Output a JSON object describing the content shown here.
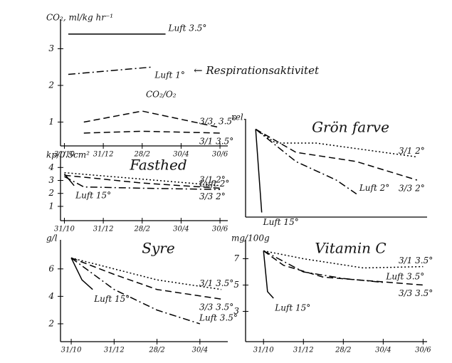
{
  "chart_data": [
    {
      "type": "line",
      "ylabel": "CO₂, ml/kg hr⁻¹",
      "annotations": [
        "← Respirationsaktivitet",
        "CO₂/O₂"
      ],
      "xlim": [
        -0.2,
        8.4
      ],
      "ylim": [
        0.35,
        3.65
      ],
      "yticks": [
        1,
        2,
        3
      ],
      "xticks": [
        {
          "value": 0,
          "label": "31/10"
        },
        {
          "value": 2,
          "label": "31/12"
        },
        {
          "value": 4,
          "label": "28/2"
        },
        {
          "value": 6,
          "label": "30/4"
        },
        {
          "value": 8,
          "label": "30/6"
        }
      ],
      "series": [
        {
          "name": "Luft 3.5°",
          "color": "#000000",
          "dash": "solid",
          "x": [
            0.2,
            5.2
          ],
          "values": [
            3.4,
            3.4
          ]
        },
        {
          "name": "Luft 1°",
          "color": "#000000",
          "dash": "dashdot",
          "x": [
            0.2,
            4.5
          ],
          "values": [
            2.3,
            2.5
          ]
        },
        {
          "name": "3/3, 3.5°",
          "color": "#000000",
          "dash": "dashed",
          "x": [
            1,
            4,
            8
          ],
          "values": [
            1.0,
            1.3,
            0.85
          ]
        },
        {
          "name": "3/1 3.5°",
          "color": "#000000",
          "dash": "dashed",
          "x": [
            1,
            4,
            8
          ],
          "values": [
            0.7,
            0.75,
            0.7
          ]
        }
      ]
    },
    {
      "type": "line",
      "title": "Fasthed",
      "ylabel": "kp/0.5cm²",
      "xlim": [
        -0.2,
        8.4
      ],
      "ylim": [
        -0.1,
        4.4
      ],
      "yticks": [
        1,
        2,
        3,
        4
      ],
      "xticks": [
        {
          "value": 0,
          "label": "31/10"
        },
        {
          "value": 2,
          "label": "31/12"
        },
        {
          "value": 4,
          "label": "28/2"
        },
        {
          "value": 6,
          "label": "30/4"
        },
        {
          "value": 8,
          "label": "30/6"
        }
      ],
      "series": [
        {
          "name": "3/1 2°",
          "color": "#000000",
          "dash": "dotted",
          "x": [
            0,
            8
          ],
          "values": [
            3.6,
            2.6
          ]
        },
        {
          "name": "3/3 2°",
          "color": "#000000",
          "dash": "dashed",
          "x": [
            0,
            4,
            8
          ],
          "values": [
            3.4,
            2.8,
            2.4
          ]
        },
        {
          "name": "Luft 2°",
          "color": "#000000",
          "dash": "dashdot",
          "x": [
            0,
            1,
            4,
            8
          ],
          "values": [
            3.3,
            2.5,
            2.4,
            2.3
          ]
        },
        {
          "name": "Luft 15°",
          "color": "#000000",
          "dash": "solid",
          "x": [
            0,
            0.5
          ],
          "values": [
            3.5,
            2.6
          ]
        }
      ]
    },
    {
      "type": "line",
      "title": "Syre",
      "ylabel": "g/l",
      "xlim": [
        -0.5,
        7.3
      ],
      "ylim": [
        0.7,
        7.7
      ],
      "yticks": [
        2,
        4,
        6
      ],
      "xticks": [
        {
          "value": 0,
          "label": "31/10"
        },
        {
          "value": 2,
          "label": "31/12"
        },
        {
          "value": 4,
          "label": "28/2"
        },
        {
          "value": 6,
          "label": "30/4"
        }
      ],
      "series": [
        {
          "name": "3/1 3.5°",
          "color": "#000000",
          "dash": "dotted",
          "x": [
            0,
            2,
            4,
            7
          ],
          "values": [
            6.8,
            6.0,
            5.2,
            4.5
          ]
        },
        {
          "name": "3/3 3.5°",
          "color": "#000000",
          "dash": "dashed",
          "x": [
            0,
            2,
            4,
            7
          ],
          "values": [
            6.8,
            5.6,
            4.5,
            3.8
          ]
        },
        {
          "name": "Luft 3.5°",
          "color": "#000000",
          "dash": "dashdot",
          "x": [
            0,
            2,
            4,
            6
          ],
          "values": [
            6.8,
            4.5,
            3.0,
            2.0
          ]
        },
        {
          "name": "Luft 15°",
          "color": "#000000",
          "dash": "solid",
          "x": [
            0,
            0.5,
            1
          ],
          "values": [
            6.8,
            5.2,
            4.5
          ]
        }
      ]
    },
    {
      "type": "line",
      "title": "Grön farve",
      "ylabel": "rel.",
      "xlim": [
        -0.5,
        8.5
      ],
      "ylim": [
        0,
        1
      ],
      "series": [
        {
          "name": "3/1 2°",
          "color": "#000000",
          "dash": "dotted",
          "x": [
            0,
            1,
            3,
            8
          ],
          "values": [
            0.95,
            0.8,
            0.8,
            0.65
          ]
        },
        {
          "name": "3/3 2°",
          "color": "#000000",
          "dash": "dashed",
          "x": [
            0,
            2,
            5,
            8
          ],
          "values": [
            0.95,
            0.7,
            0.6,
            0.4
          ]
        },
        {
          "name": "Luft 2°",
          "color": "#000000",
          "dash": "dashdot",
          "x": [
            0,
            2,
            4,
            5
          ],
          "values": [
            0.95,
            0.6,
            0.4,
            0.25
          ]
        },
        {
          "name": "Luft 15°",
          "color": "#000000",
          "dash": "solid",
          "x": [
            0,
            0.3
          ],
          "values": [
            0.95,
            0.05
          ]
        }
      ]
    },
    {
      "type": "line",
      "title": "Vitamin C",
      "ylabel": "mg/100g",
      "xlim": [
        -0.9,
        8.2
      ],
      "ylim": [
        0.7,
        8.0
      ],
      "yticks": [
        3,
        5,
        7
      ],
      "xticks": [
        {
          "value": 0,
          "label": "31/10"
        },
        {
          "value": 2,
          "label": "31/12"
        },
        {
          "value": 4,
          "label": "28/2"
        },
        {
          "value": 6,
          "label": "30/4"
        },
        {
          "value": 8,
          "label": "30/6"
        }
      ],
      "series": [
        {
          "name": "3/1 3.5°",
          "color": "#000000",
          "dash": "dotted",
          "x": [
            0,
            2,
            5,
            8
          ],
          "values": [
            7.6,
            7.0,
            6.3,
            6.4
          ]
        },
        {
          "name": "3/3 3.5°",
          "color": "#000000",
          "dash": "dashed",
          "x": [
            0,
            1,
            3,
            8
          ],
          "values": [
            7.6,
            6.5,
            5.6,
            5.0
          ]
        },
        {
          "name": "Luft 3.5°",
          "color": "#000000",
          "dash": "dashdot",
          "x": [
            0,
            2,
            4,
            6
          ],
          "values": [
            7.6,
            6.0,
            5.5,
            5.2
          ]
        },
        {
          "name": "Luft 15°",
          "color": "#000000",
          "dash": "solid",
          "x": [
            0,
            0.2,
            0.5
          ],
          "values": [
            7.6,
            4.5,
            4.0
          ]
        }
      ]
    }
  ]
}
